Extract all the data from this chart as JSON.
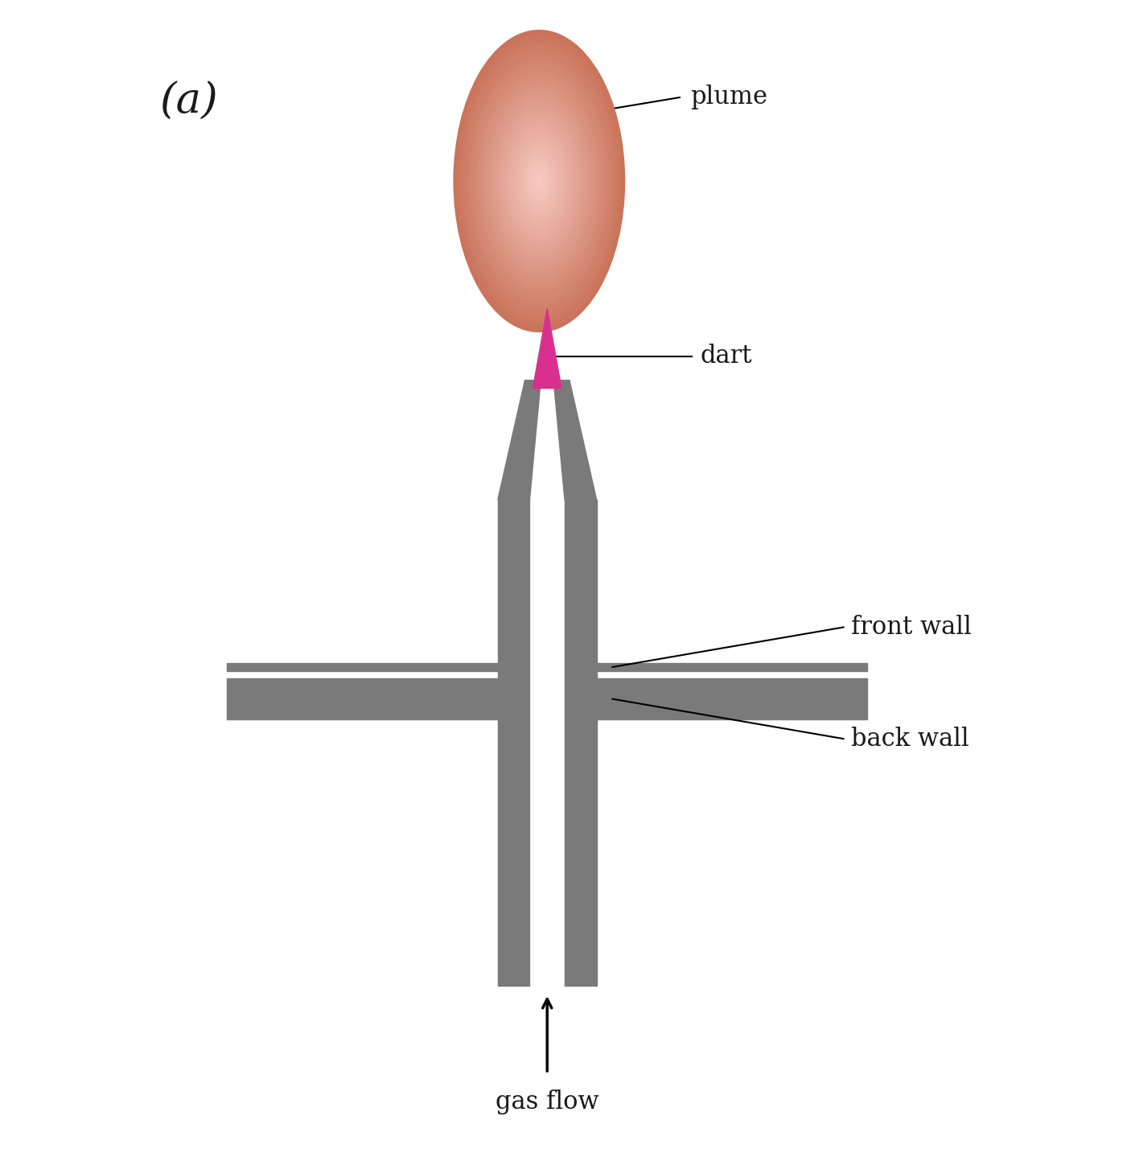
{
  "bg_color": "#ffffff",
  "gray_color": "#7a7a7a",
  "pink_dart": "#d93090",
  "label_color": "#1a1a1a",
  "label_a": "(a)",
  "label_plume": "plume",
  "label_dart": "dart",
  "label_front_wall": "front wall",
  "label_back_wall": "back wall",
  "label_gas_flow": "gas flow",
  "font_size_a": 38,
  "font_size_labels": 22
}
